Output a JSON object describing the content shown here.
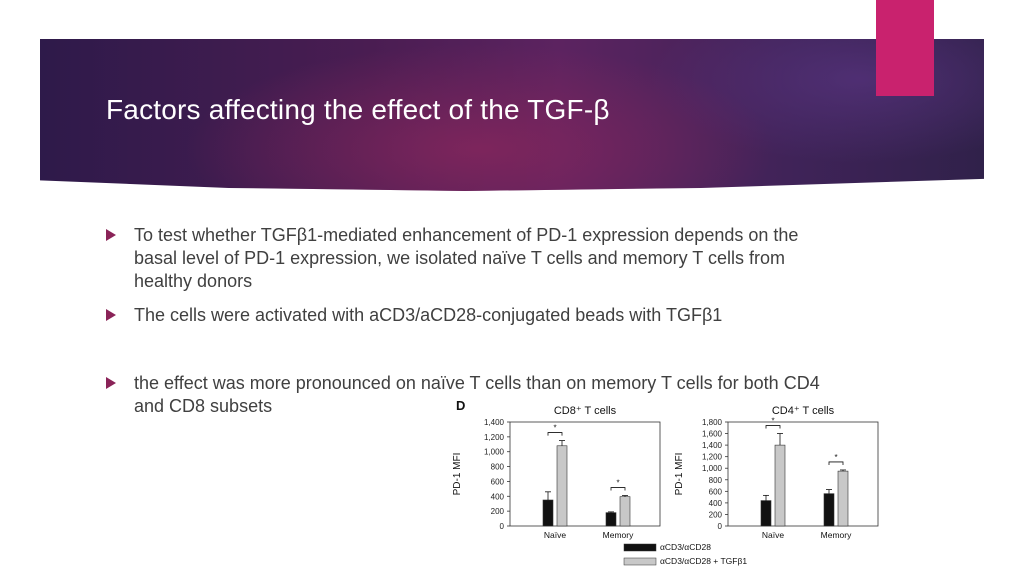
{
  "slide": {
    "title": "Factors affecting the effect of the  TGF-β",
    "bullets": [
      " To test whether TGFβ1-mediated enhancement of PD-1 expression depends on the basal level of PD-1 expression, we isolated naïve T cells and memory T cells from healthy donors",
      " The cells were activated with aCD3/aCD28-conjugated beads with TGFβ1",
      " the effect was more pronounced on naïve T cells than on memory T cells for both CD4 and CD8 subsets"
    ],
    "colors": {
      "accent": "#c9226e",
      "banner": "#4a1d52",
      "bullet_marker": "#8a2358"
    }
  },
  "figure": {
    "panel_letter": "D",
    "ylabel": "PD-1 MFI",
    "significance_mark": "*",
    "legend": [
      "αCD3/αCD28",
      "αCD3/αCD28 + TGFβ1"
    ],
    "legend_colors": [
      "#111111",
      "#c8c8c8"
    ]
  },
  "chart_data": [
    {
      "type": "bar",
      "title": "CD8⁺ T cells",
      "ylabel": "PD-1 MFI",
      "categories": [
        "Naïve",
        "Memory"
      ],
      "ylim": [
        0,
        1400
      ],
      "yticks": [
        0,
        200,
        400,
        600,
        800,
        1000,
        1200,
        1400
      ],
      "ytick_labels": [
        "0",
        "200",
        "400",
        "600",
        "800",
        "1,000",
        "1,200",
        "1,400"
      ],
      "series": [
        {
          "name": "αCD3/αCD28",
          "values": [
            350,
            180
          ],
          "errors": [
            110,
            10
          ]
        },
        {
          "name": "αCD3/αCD28 + TGFβ1",
          "values": [
            1080,
            395
          ],
          "errors": [
            70,
            15
          ]
        }
      ],
      "significance": [
        true,
        true
      ]
    },
    {
      "type": "bar",
      "title": "CD4⁺ T cells",
      "ylabel": "PD-1 MFI",
      "categories": [
        "Naïve",
        "Memory"
      ],
      "ylim": [
        0,
        1800
      ],
      "yticks": [
        0,
        200,
        400,
        600,
        800,
        1000,
        1200,
        1400,
        1600,
        1800
      ],
      "ytick_labels": [
        "0",
        "200",
        "400",
        "600",
        "800",
        "1,000",
        "1,200",
        "1,400",
        "1,600",
        "1,800"
      ],
      "series": [
        {
          "name": "αCD3/αCD28",
          "values": [
            440,
            560
          ],
          "errors": [
            90,
            70
          ]
        },
        {
          "name": "αCD3/αCD28 + TGFβ1",
          "values": [
            1400,
            950
          ],
          "errors": [
            200,
            20
          ]
        }
      ],
      "significance": [
        true,
        true
      ]
    }
  ]
}
